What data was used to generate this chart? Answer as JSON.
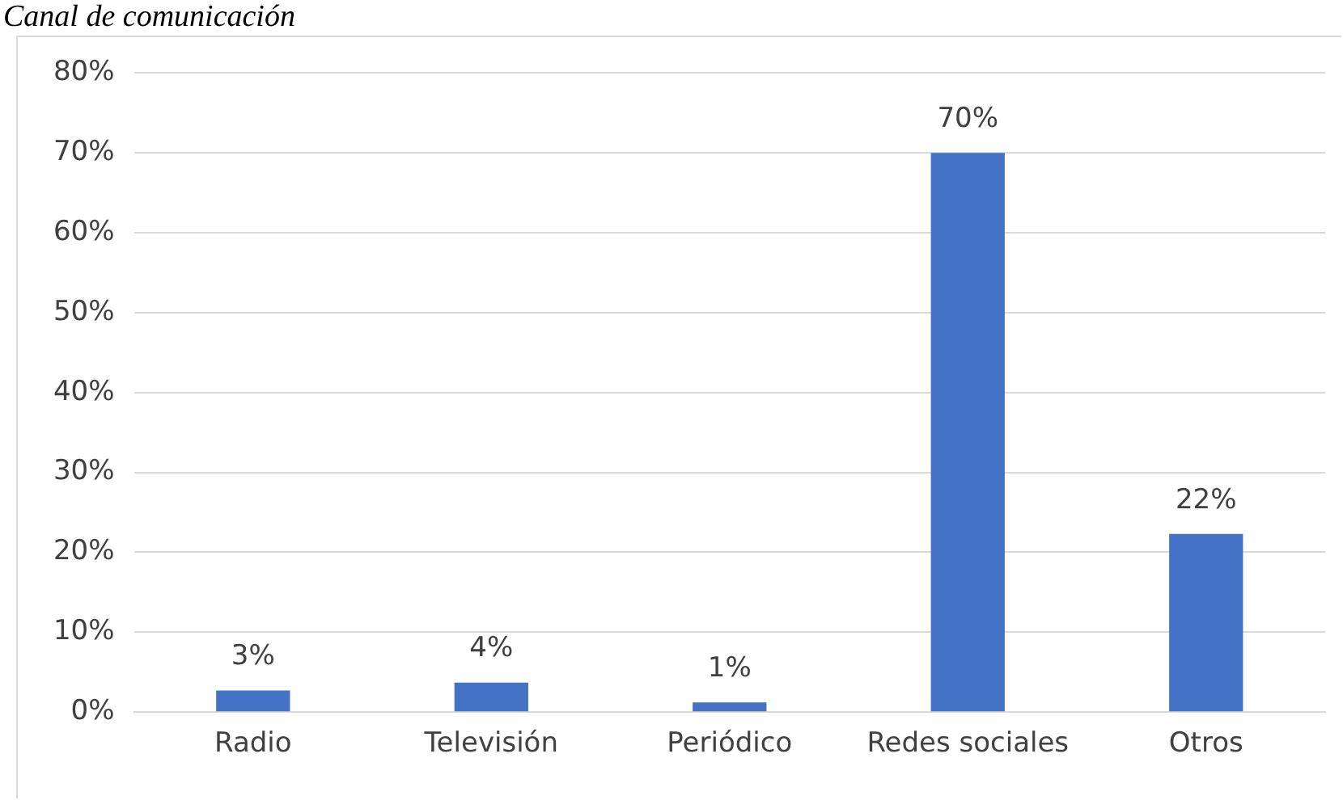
{
  "chart_data": {
    "type": "bar",
    "title": "Canal de comunicación",
    "categories": [
      "Radio",
      "Televisión",
      "Periódico",
      "Redes sociales",
      "Otros"
    ],
    "values": [
      2.7,
      3.7,
      1.2,
      70,
      22.3
    ],
    "value_labels": [
      "3%",
      "4%",
      "1%",
      "70%",
      "22%"
    ],
    "color": "#4472c4",
    "ylim": [
      0,
      80
    ],
    "yticks": [
      {
        "value": 0,
        "label": "0%"
      },
      {
        "value": 10,
        "label": "10%"
      },
      {
        "value": 20,
        "label": "20%"
      },
      {
        "value": 30,
        "label": "30%"
      },
      {
        "value": 40,
        "label": "40%"
      },
      {
        "value": 50,
        "label": "50%"
      },
      {
        "value": 60,
        "label": "60%"
      },
      {
        "value": 70,
        "label": "70%"
      },
      {
        "value": 80,
        "label": "80%"
      }
    ],
    "grid": "y",
    "legend": false
  }
}
